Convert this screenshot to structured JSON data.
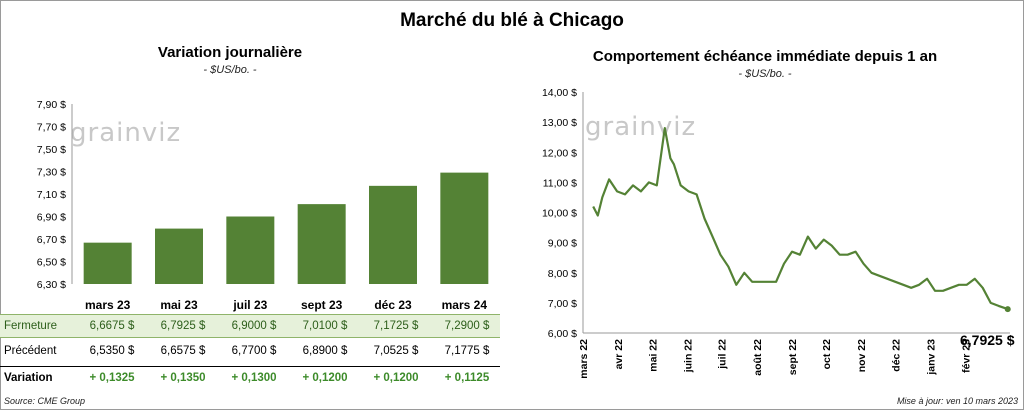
{
  "main_title": "Marché du blé à Chicago",
  "left": {
    "title": "Variation journalière",
    "subtitle": "- $US/bo. -"
  },
  "right": {
    "title": "Comportement échéance immédiate depuis 1 an",
    "subtitle": "- $US/bo. -",
    "last_value_label": "6,7925 $"
  },
  "watermark": "grainviz",
  "table": {
    "close_label": "Fermeture",
    "prev_label": "Précédent",
    "var_label": "Variation",
    "close": [
      "6,6675 $",
      "6,7925 $",
      "6,9000 $",
      "7,0100 $",
      "7,1725 $",
      "7,2900 $"
    ],
    "prev": [
      "6,5350 $",
      "6,6575 $",
      "6,7700 $",
      "6,8900 $",
      "7,0525 $",
      "7,1775 $"
    ],
    "var": [
      "+ 0,1325",
      "+ 0,1350",
      "+ 0,1300",
      "+ 0,1200",
      "+ 0,1200",
      "+ 0,1125"
    ]
  },
  "footer": {
    "source": "Source: CME Group",
    "updated": "Mise à jour: ven 10 mars 2023"
  },
  "colors": {
    "bar": "#548235",
    "line": "#548235",
    "close_row_bg": "#e6f1da"
  },
  "chart_data": [
    {
      "type": "bar",
      "categories": [
        "mars 23",
        "mai 23",
        "juil 23",
        "sept 23",
        "déc 23",
        "mars 24"
      ],
      "values": [
        6.6675,
        6.7925,
        6.9,
        7.01,
        7.1725,
        7.29
      ],
      "ylim": [
        6.3,
        7.9
      ],
      "yticks": [
        "7,90 $",
        "7,70 $",
        "7,50 $",
        "7,30 $",
        "7,10 $",
        "6,90 $",
        "6,70 $",
        "6,50 $",
        "6,30 $"
      ],
      "grid": false
    },
    {
      "type": "line",
      "x": [
        "2022-03-10",
        "2022-03-14",
        "2022-03-18",
        "2022-03-24",
        "2022-03-31",
        "2022-04-07",
        "2022-04-14",
        "2022-04-21",
        "2022-04-28",
        "2022-05-05",
        "2022-05-12",
        "2022-05-17",
        "2022-05-20",
        "2022-05-26",
        "2022-06-02",
        "2022-06-09",
        "2022-06-16",
        "2022-06-23",
        "2022-06-30",
        "2022-07-07",
        "2022-07-14",
        "2022-07-21",
        "2022-07-28",
        "2022-08-04",
        "2022-08-11",
        "2022-08-18",
        "2022-08-25",
        "2022-09-01",
        "2022-09-08",
        "2022-09-15",
        "2022-09-22",
        "2022-09-29",
        "2022-10-06",
        "2022-10-13",
        "2022-10-20",
        "2022-10-27",
        "2022-11-03",
        "2022-11-10",
        "2022-11-17",
        "2022-11-24",
        "2022-12-01",
        "2022-12-08",
        "2022-12-15",
        "2022-12-22",
        "2022-12-29",
        "2023-01-05",
        "2023-01-12",
        "2023-01-19",
        "2023-01-26",
        "2023-02-02",
        "2023-02-09",
        "2023-02-16",
        "2023-02-23",
        "2023-03-02",
        "2023-03-10"
      ],
      "values": [
        10.2,
        9.9,
        10.5,
        11.1,
        10.7,
        10.6,
        10.9,
        10.7,
        11.0,
        10.9,
        12.8,
        11.8,
        11.6,
        10.9,
        10.7,
        10.6,
        9.8,
        9.2,
        8.6,
        8.2,
        7.6,
        8.0,
        7.7,
        7.7,
        7.7,
        7.7,
        8.3,
        8.7,
        8.6,
        9.2,
        8.8,
        9.1,
        8.9,
        8.6,
        8.6,
        8.7,
        8.3,
        8.0,
        7.9,
        7.8,
        7.7,
        7.6,
        7.5,
        7.6,
        7.8,
        7.4,
        7.4,
        7.5,
        7.6,
        7.6,
        7.8,
        7.5,
        7.0,
        6.9,
        6.7925
      ],
      "ylim": [
        6.0,
        14.0
      ],
      "yticks": [
        "14,00 $",
        "13,00 $",
        "12,00 $",
        "11,00 $",
        "10,00 $",
        "9,00 $",
        "8,00 $",
        "7,00 $",
        "6,00 $"
      ],
      "xticks": [
        "mars 22",
        "avr 22",
        "mai 22",
        "juin 22",
        "juil 22",
        "août 22",
        "sept 22",
        "oct 22",
        "nov 22",
        "déc 22",
        "janv 23",
        "févr 23"
      ],
      "grid": false
    }
  ]
}
